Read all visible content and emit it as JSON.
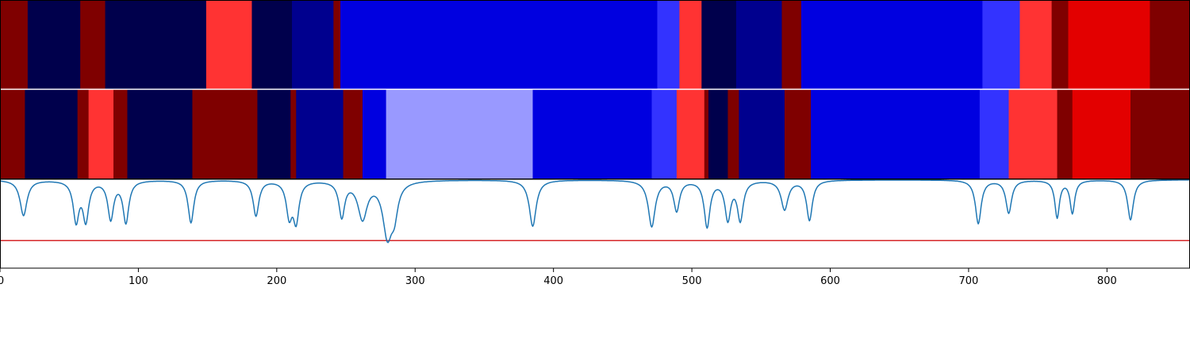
{
  "chart_data": [
    {
      "type": "heatmap",
      "name": "segment-track-1",
      "xlim": [
        0,
        860
      ],
      "segments": [
        {
          "start": 0,
          "end": 20,
          "color": "#7f0000"
        },
        {
          "start": 20,
          "end": 58,
          "color": "#00004c"
        },
        {
          "start": 58,
          "end": 76,
          "color": "#7f0000"
        },
        {
          "start": 76,
          "end": 149,
          "color": "#00004c"
        },
        {
          "start": 149,
          "end": 182,
          "color": "#ff3333"
        },
        {
          "start": 182,
          "end": 211,
          "color": "#00004c"
        },
        {
          "start": 211,
          "end": 241,
          "color": "#00008e"
        },
        {
          "start": 241,
          "end": 246,
          "color": "#7f0000"
        },
        {
          "start": 246,
          "end": 475,
          "color": "#0000e0"
        },
        {
          "start": 475,
          "end": 491,
          "color": "#3333ff"
        },
        {
          "start": 491,
          "end": 507,
          "color": "#ff3333"
        },
        {
          "start": 507,
          "end": 532,
          "color": "#00004c"
        },
        {
          "start": 532,
          "end": 565,
          "color": "#00008e"
        },
        {
          "start": 565,
          "end": 579,
          "color": "#7f0000"
        },
        {
          "start": 579,
          "end": 710,
          "color": "#0000e0"
        },
        {
          "start": 710,
          "end": 737,
          "color": "#3333ff"
        },
        {
          "start": 737,
          "end": 760,
          "color": "#ff3333"
        },
        {
          "start": 760,
          "end": 772,
          "color": "#7f0000"
        },
        {
          "start": 772,
          "end": 831,
          "color": "#e30000"
        },
        {
          "start": 831,
          "end": 860,
          "color": "#7f0000"
        }
      ]
    },
    {
      "type": "heatmap",
      "name": "segment-track-2",
      "xlim": [
        0,
        860
      ],
      "segments": [
        {
          "start": 0,
          "end": 18,
          "color": "#7f0000"
        },
        {
          "start": 18,
          "end": 56,
          "color": "#00004c"
        },
        {
          "start": 56,
          "end": 64,
          "color": "#7f0000"
        },
        {
          "start": 64,
          "end": 82,
          "color": "#ff3333"
        },
        {
          "start": 82,
          "end": 92,
          "color": "#7f0000"
        },
        {
          "start": 92,
          "end": 139,
          "color": "#00004c"
        },
        {
          "start": 139,
          "end": 186,
          "color": "#7f0000"
        },
        {
          "start": 186,
          "end": 210,
          "color": "#00004c"
        },
        {
          "start": 210,
          "end": 214,
          "color": "#7f0000"
        },
        {
          "start": 214,
          "end": 248,
          "color": "#00008e"
        },
        {
          "start": 248,
          "end": 262,
          "color": "#7f0000"
        },
        {
          "start": 262,
          "end": 279,
          "color": "#0000e0"
        },
        {
          "start": 279,
          "end": 385,
          "color": "#9999ff"
        },
        {
          "start": 385,
          "end": 471,
          "color": "#0000e0"
        },
        {
          "start": 471,
          "end": 489,
          "color": "#3333ff"
        },
        {
          "start": 489,
          "end": 509,
          "color": "#ff3333"
        },
        {
          "start": 509,
          "end": 512,
          "color": "#7f0000"
        },
        {
          "start": 512,
          "end": 526,
          "color": "#00004c"
        },
        {
          "start": 526,
          "end": 534,
          "color": "#7f0000"
        },
        {
          "start": 534,
          "end": 567,
          "color": "#00008e"
        },
        {
          "start": 567,
          "end": 586,
          "color": "#7f0000"
        },
        {
          "start": 586,
          "end": 708,
          "color": "#0000e0"
        },
        {
          "start": 708,
          "end": 729,
          "color": "#3333ff"
        },
        {
          "start": 729,
          "end": 764,
          "color": "#ff3333"
        },
        {
          "start": 764,
          "end": 775,
          "color": "#7f0000"
        },
        {
          "start": 775,
          "end": 817,
          "color": "#e30000"
        },
        {
          "start": 817,
          "end": 860,
          "color": "#7f0000"
        }
      ]
    },
    {
      "type": "line",
      "xlim": [
        0,
        860
      ],
      "ylim": [
        0,
        1
      ],
      "x_ticks": [
        0,
        100,
        200,
        300,
        400,
        500,
        600,
        700,
        800
      ],
      "grid": false,
      "threshold": {
        "value": 0.31,
        "color": "#d62728"
      },
      "series": [
        {
          "color": "#1f77b4",
          "baseline": 0.995,
          "dips": [
            {
              "x": 17,
              "depth": 0.4,
              "width": 3
            },
            {
              "x": 55,
              "depth": 0.45,
              "width": 2.5
            },
            {
              "x": 62,
              "depth": 0.44,
              "width": 2.5
            },
            {
              "x": 80,
              "depth": 0.43,
              "width": 2.5
            },
            {
              "x": 91,
              "depth": 0.47,
              "width": 2.5
            },
            {
              "x": 138,
              "depth": 0.48,
              "width": 2.5
            },
            {
              "x": 185,
              "depth": 0.4,
              "width": 2.5
            },
            {
              "x": 209,
              "depth": 0.38,
              "width": 2.5
            },
            {
              "x": 214,
              "depth": 0.44,
              "width": 2.5
            },
            {
              "x": 247,
              "depth": 0.4,
              "width": 2.5
            },
            {
              "x": 262,
              "depth": 0.42,
              "width": 4
            },
            {
              "x": 280,
              "depth": 0.6,
              "width": 4
            },
            {
              "x": 285,
              "depth": 0.3,
              "width": 3
            },
            {
              "x": 385,
              "depth": 0.52,
              "width": 3
            },
            {
              "x": 471,
              "depth": 0.52,
              "width": 3
            },
            {
              "x": 489,
              "depth": 0.34,
              "width": 2.5
            },
            {
              "x": 511,
              "depth": 0.52,
              "width": 2.5
            },
            {
              "x": 526,
              "depth": 0.43,
              "width": 2.5
            },
            {
              "x": 535,
              "depth": 0.44,
              "width": 2.5
            },
            {
              "x": 567,
              "depth": 0.33,
              "width": 3
            },
            {
              "x": 585,
              "depth": 0.45,
              "width": 2.5
            },
            {
              "x": 707,
              "depth": 0.49,
              "width": 2.5
            },
            {
              "x": 729,
              "depth": 0.37,
              "width": 2.5
            },
            {
              "x": 764,
              "depth": 0.42,
              "width": 2
            },
            {
              "x": 775,
              "depth": 0.37,
              "width": 2
            },
            {
              "x": 817,
              "depth": 0.45,
              "width": 2.5
            }
          ]
        }
      ]
    }
  ]
}
